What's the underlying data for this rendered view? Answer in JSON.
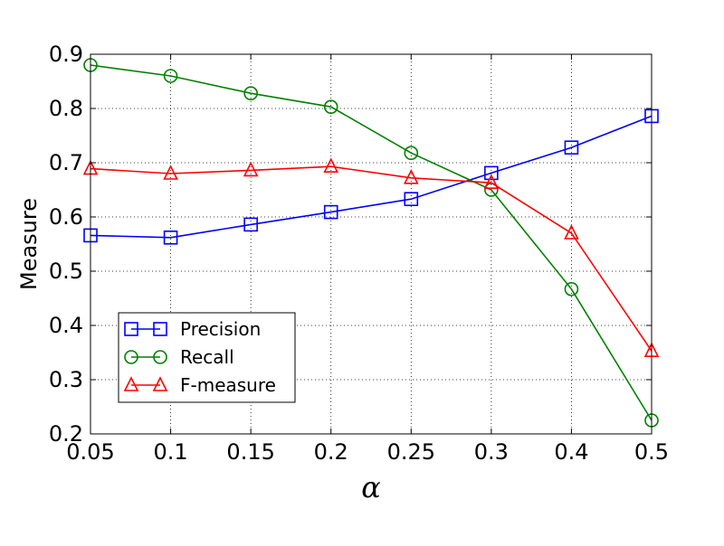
{
  "chart_data": {
    "type": "line",
    "title": "",
    "xlabel": "α",
    "ylabel": "Measure",
    "categories": [
      "0.05",
      "0.1",
      "0.15",
      "0.2",
      "0.25",
      "0.3",
      "0.4",
      "0.5"
    ],
    "ylim": [
      0.2,
      0.9
    ],
    "yticks": [
      "0.2",
      "0.3",
      "0.4",
      "0.5",
      "0.6",
      "0.7",
      "0.8",
      "0.9"
    ],
    "grid": true,
    "legend_position": "lower-left",
    "series": [
      {
        "name": "Precision",
        "color": "#0000ff",
        "marker": "square",
        "values": [
          0.566,
          0.562,
          0.586,
          0.609,
          0.633,
          0.681,
          0.728,
          0.786
        ]
      },
      {
        "name": "Recall",
        "color": "#008000",
        "marker": "circle",
        "values": [
          0.88,
          0.86,
          0.828,
          0.803,
          0.718,
          0.65,
          0.467,
          0.225
        ]
      },
      {
        "name": "F-measure",
        "color": "#ff0000",
        "marker": "triangle",
        "values": [
          0.689,
          0.68,
          0.686,
          0.693,
          0.672,
          0.663,
          0.57,
          0.353
        ]
      }
    ]
  }
}
